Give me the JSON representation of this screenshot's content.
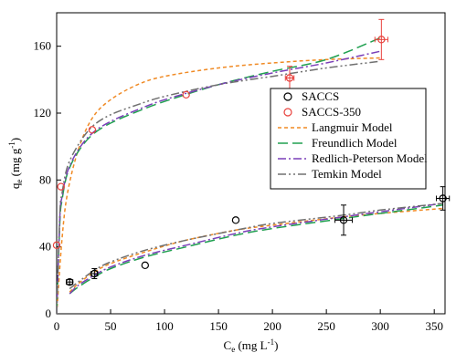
{
  "chart_data": {
    "type": "scatter",
    "xlim": [
      0,
      360
    ],
    "ylim": [
      0,
      180
    ],
    "xticks": [
      0,
      50,
      100,
      150,
      200,
      250,
      300,
      350
    ],
    "yticks": [
      0,
      40,
      80,
      120,
      160
    ],
    "xlabel": {
      "main": "C",
      "sub": "e",
      "rest": " (mg L",
      "sup": "-1",
      "end": ")"
    },
    "ylabel": {
      "main": "q",
      "sub": "e",
      "rest": " (mg g",
      "sup": "-1",
      "end": ")"
    },
    "grid": false,
    "legend_position": "right-middle",
    "series": [
      {
        "name": "SACCS",
        "kind": "points",
        "marker": "circle-open",
        "color": "#000000",
        "points": [
          {
            "x": 12,
            "y": 19,
            "xerr": 3,
            "yerr": 1.5
          },
          {
            "x": 35,
            "y": 24,
            "xerr": 3,
            "yerr": 3
          },
          {
            "x": 82,
            "y": 29,
            "xerr": 0,
            "yerr": 0
          },
          {
            "x": 166,
            "y": 56,
            "xerr": 0,
            "yerr": 0
          },
          {
            "x": 266,
            "y": 56,
            "xerr": 8,
            "yerr": 9
          },
          {
            "x": 358,
            "y": 69,
            "xerr": 6,
            "yerr": 7
          }
        ]
      },
      {
        "name": "SACCS-350",
        "kind": "points",
        "marker": "circle-open",
        "color": "#e8413c",
        "points": [
          {
            "x": 0,
            "y": 41,
            "xerr": 0,
            "yerr": 0
          },
          {
            "x": 4,
            "y": 76,
            "xerr": 0,
            "yerr": 0
          },
          {
            "x": 33,
            "y": 110,
            "xerr": 0,
            "yerr": 0
          },
          {
            "x": 120,
            "y": 131,
            "xerr": 0,
            "yerr": 0
          },
          {
            "x": 216,
            "y": 141,
            "xerr": 4,
            "yerr": 7
          },
          {
            "x": 301,
            "y": 164,
            "xerr": 6,
            "yerr": 12
          }
        ]
      },
      {
        "name": "Langmuir Model",
        "kind": "model",
        "color": "#f08a24",
        "dash": "4,3",
        "curves": [
          [
            [
              0,
              0
            ],
            [
              5,
              45
            ],
            [
              10,
              72
            ],
            [
              20,
              98
            ],
            [
              33,
              117
            ],
            [
              50,
              128
            ],
            [
              75,
              137
            ],
            [
              100,
              142
            ],
            [
              150,
              147
            ],
            [
              200,
              150
            ],
            [
              250,
              152
            ],
            [
              300,
              153
            ]
          ],
          [
            [
              12,
              13
            ],
            [
              20,
              18
            ],
            [
              35,
              25
            ],
            [
              50,
              30
            ],
            [
              82,
              37
            ],
            [
              120,
              44
            ],
            [
              166,
              50
            ],
            [
              200,
              53
            ],
            [
              266,
              58
            ],
            [
              300,
              60
            ],
            [
              358,
              63
            ]
          ]
        ]
      },
      {
        "name": "Freundlich Model",
        "kind": "model",
        "color": "#20a050",
        "dash": "11,5",
        "curves": [
          [
            [
              0,
              0
            ],
            [
              3,
              55
            ],
            [
              5,
              68
            ],
            [
              10,
              84
            ],
            [
              20,
              97
            ],
            [
              33,
              107
            ],
            [
              50,
              114
            ],
            [
              75,
              121
            ],
            [
              100,
              127
            ],
            [
              150,
              137
            ],
            [
              200,
              145
            ],
            [
              250,
              152
            ],
            [
              300,
              165
            ]
          ],
          [
            [
              12,
              12
            ],
            [
              20,
              16
            ],
            [
              35,
              22
            ],
            [
              50,
              27
            ],
            [
              82,
              34
            ],
            [
              120,
              40
            ],
            [
              166,
              47
            ],
            [
              200,
              51
            ],
            [
              266,
              57
            ],
            [
              300,
              60
            ],
            [
              358,
              65
            ]
          ]
        ]
      },
      {
        "name": "Redlich-Peterson Model",
        "kind": "model",
        "color": "#7a3fb8",
        "dash": "9,3,2,3",
        "curves": [
          [
            [
              0,
              0
            ],
            [
              3,
              58
            ],
            [
              5,
              70
            ],
            [
              10,
              85
            ],
            [
              20,
              98
            ],
            [
              33,
              108
            ],
            [
              50,
              115
            ],
            [
              75,
              122
            ],
            [
              100,
              128
            ],
            [
              150,
              137
            ],
            [
              200,
              144
            ],
            [
              250,
              150
            ],
            [
              300,
              157
            ]
          ],
          [
            [
              12,
              12
            ],
            [
              20,
              17
            ],
            [
              35,
              23
            ],
            [
              50,
              28
            ],
            [
              82,
              35
            ],
            [
              120,
              41
            ],
            [
              166,
              48
            ],
            [
              200,
              52
            ],
            [
              266,
              58
            ],
            [
              300,
              61
            ],
            [
              358,
              66
            ]
          ]
        ]
      },
      {
        "name": "Temkin Model",
        "kind": "model",
        "color": "#707070",
        "dash": "9,3,2,3,2,3",
        "curves": [
          [
            [
              0,
              0
            ],
            [
              3,
              60
            ],
            [
              5,
              72
            ],
            [
              10,
              88
            ],
            [
              20,
              101
            ],
            [
              33,
              112
            ],
            [
              50,
              119
            ],
            [
              75,
              125
            ],
            [
              100,
              130
            ],
            [
              150,
              137
            ],
            [
              200,
              142
            ],
            [
              250,
              147
            ],
            [
              300,
              151
            ]
          ],
          [
            [
              12,
              15
            ],
            [
              20,
              19
            ],
            [
              35,
              26
            ],
            [
              50,
              31
            ],
            [
              82,
              38
            ],
            [
              120,
              44
            ],
            [
              166,
              50
            ],
            [
              200,
              54
            ],
            [
              266,
              59
            ],
            [
              300,
              62
            ],
            [
              358,
              66
            ]
          ]
        ]
      }
    ]
  }
}
